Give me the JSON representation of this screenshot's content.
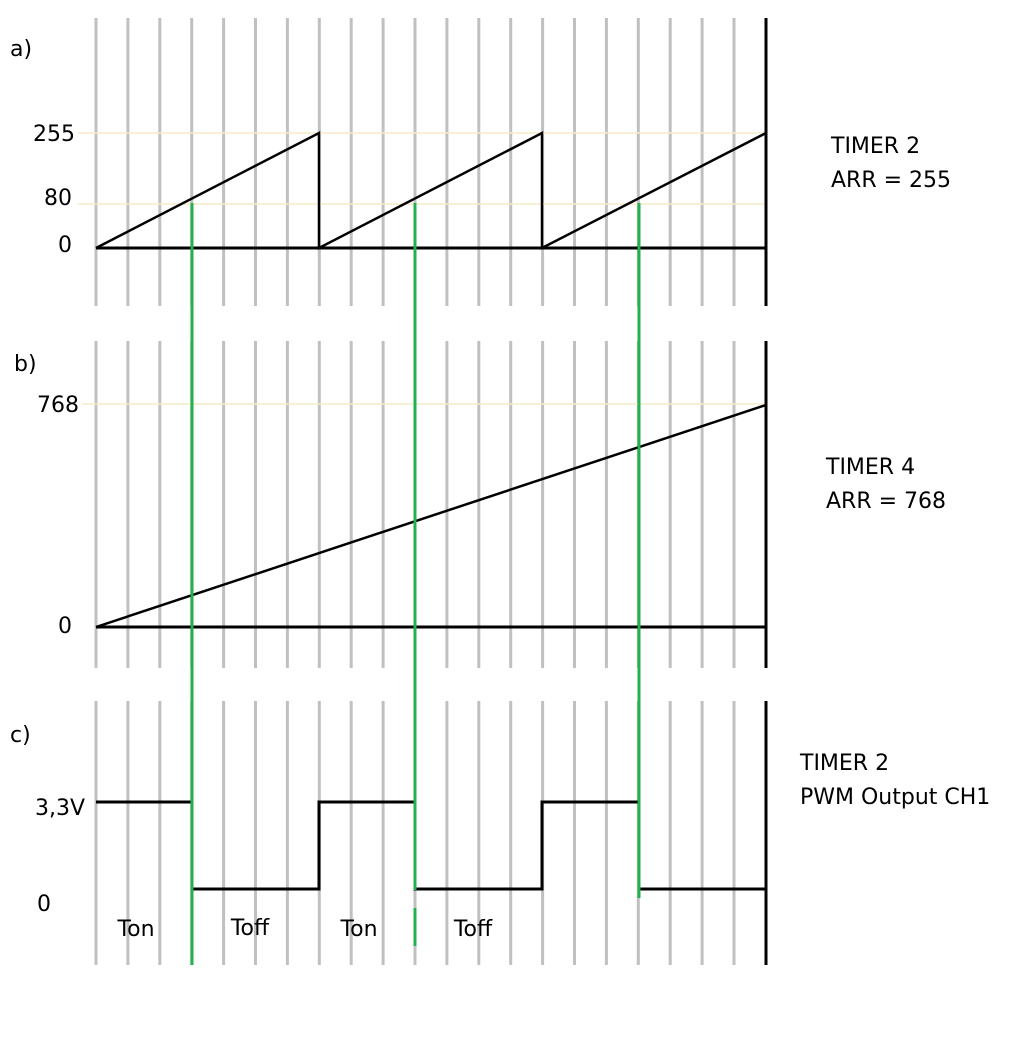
{
  "panels": [
    {
      "tag": "a)",
      "ticks": [
        "255",
        "80",
        "0"
      ],
      "caption": [
        "TIMER 2",
        "ARR = 255"
      ]
    },
    {
      "tag": "b)",
      "ticks": [
        "768",
        "0"
      ],
      "caption": [
        "TIMER 4",
        "ARR = 768"
      ]
    },
    {
      "tag": "c)",
      "ticks": [
        "3,3V",
        "0"
      ],
      "caption": [
        "TIMER 2",
        "PWM Output CH1"
      ],
      "phases": [
        "Ton",
        "Toff",
        "Ton",
        "Toff"
      ]
    }
  ],
  "colors": {
    "grid": "#c0c0c0",
    "signal": "#000000",
    "compare": "#22b14c",
    "threshold": "#f5ecc8"
  }
}
